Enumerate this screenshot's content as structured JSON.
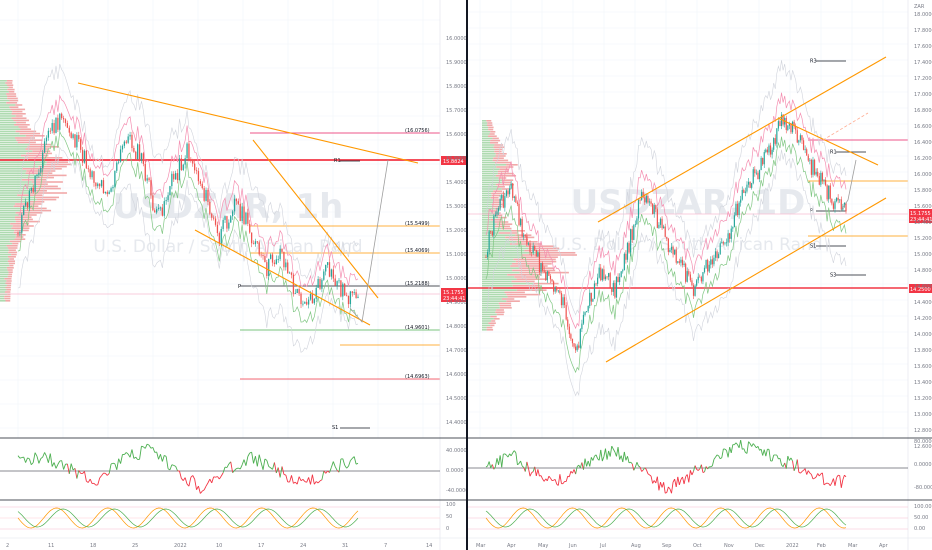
{
  "colors": {
    "up": "#26a69a",
    "down": "#ef5350",
    "green_line": "#4caf50",
    "red_line": "#f23645",
    "orange": "#ff9800",
    "grid": "#f0f3fa",
    "pane_border": "#131722",
    "price_tag": "#f23645"
  },
  "left_chart": {
    "watermark_symbol": "USDZAR, 1h",
    "watermark_name": "U.S. Dollar / South African Rand",
    "level_labels": [
      {
        "text": "(16.0756)",
        "price": 16.0756,
        "color": "#e91e63"
      },
      {
        "text": "(15.5499)",
        "price": 15.5499,
        "color": "#ff9800"
      },
      {
        "text": "(15.4069)",
        "price": 15.4069,
        "color": "#ff9800"
      },
      {
        "text": "(15.2188)",
        "price": 15.2188,
        "color": "#131722"
      },
      {
        "text": "(14.9601)",
        "price": 14.9601,
        "color": "#4caf50"
      },
      {
        "text": "(14.6963)",
        "price": 14.6963,
        "color": "#f23645"
      }
    ],
    "pivot_labels": [
      "R1",
      "P",
      "S1"
    ],
    "price_tag": {
      "price": "15.1755",
      "time": "23:44:41"
    },
    "resistance_tag": "15.8824",
    "y_axis_labels": [
      "16.0000",
      "15.9000",
      "15.8000",
      "15.7000",
      "15.6000",
      "15.5000",
      "15.4000",
      "15.3000",
      "15.2000",
      "15.1000",
      "15.0000",
      "14.9000",
      "14.8000",
      "14.7000",
      "14.6000",
      "14.5000",
      "14.4000"
    ],
    "x_axis_labels": [
      "2",
      "11",
      "18",
      "25",
      "2022",
      "10",
      "17",
      "24",
      "31",
      "7",
      "14"
    ],
    "osc1_labels": [
      "40.0000",
      "0.0000",
      "-40.0000"
    ],
    "osc2_labels": [
      "100",
      "50",
      "0"
    ]
  },
  "right_chart": {
    "watermark_symbol": "USDZAR, 1D",
    "watermark_name": "U.S. Dollar / South African Rand",
    "pivot_labels": [
      "R3",
      "R1",
      "P",
      "S1",
      "S3"
    ],
    "price_tag": {
      "price": "15.1755",
      "time": "23:44:41"
    },
    "support_tag": "14.2500",
    "y_axis_labels": [
      "18.0000",
      "17.8000",
      "17.6000",
      "17.4000",
      "17.2000",
      "17.0000",
      "16.8000",
      "16.6000",
      "16.4000",
      "16.2000",
      "16.0000",
      "15.8000",
      "15.6000",
      "15.4000",
      "15.2000",
      "15.0000",
      "14.8000",
      "14.6000",
      "14.4000",
      "14.2000",
      "14.0000",
      "13.8000",
      "13.6000",
      "13.4000",
      "13.2000",
      "13.0000",
      "12.8000",
      "12.6000"
    ],
    "corner_label": "ZAR",
    "x_axis_labels": [
      "Mar",
      "Apr",
      "May",
      "Jun",
      "Jul",
      "Aug",
      "Sep",
      "Oct",
      "Nov",
      "Dec",
      "2022",
      "Feb",
      "Mar",
      "Apr"
    ],
    "osc1_labels": [
      "80.0000",
      "0.0000",
      "-80.0000"
    ],
    "osc2_labels": [
      "100.00",
      "50.00",
      "0.00"
    ]
  }
}
